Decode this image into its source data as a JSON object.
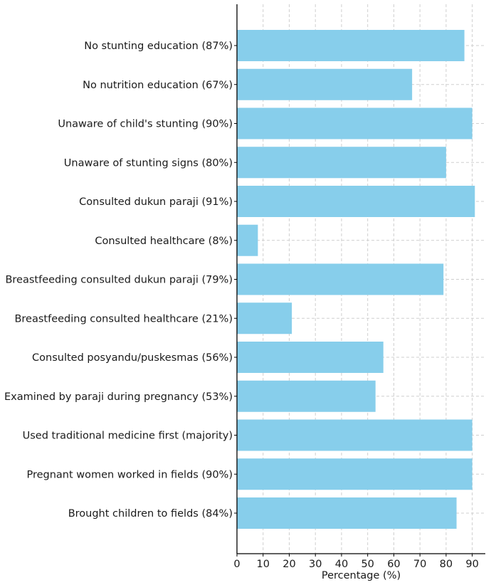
{
  "chart_data": {
    "type": "bar",
    "orientation": "horizontal",
    "title": "",
    "xlabel": "Percentage (%)",
    "ylabel": "",
    "xlim": [
      0,
      95
    ],
    "xticks": [
      0,
      10,
      20,
      30,
      40,
      50,
      60,
      70,
      80,
      90
    ],
    "grid": true,
    "bar_color": "#87CEEB",
    "categories": [
      "No stunting education (87%)",
      "No nutrition education (67%)",
      "Unaware of child's stunting (90%)",
      "Unaware of stunting signs (80%)",
      "Consulted dukun paraji (91%)",
      "Consulted healthcare (8%)",
      "Breastfeeding consulted dukun paraji (79%)",
      "Breastfeeding consulted healthcare (21%)",
      "Consulted posyandu/puskesmas (56%)",
      "Examined by paraji during pregnancy (53%)",
      "Used traditional medicine first (majority)",
      "Pregnant women worked in fields (90%)",
      "Brought children to fields (84%)"
    ],
    "values": [
      87,
      67,
      90,
      80,
      91,
      8,
      79,
      21,
      56,
      53,
      90,
      90,
      84
    ]
  }
}
